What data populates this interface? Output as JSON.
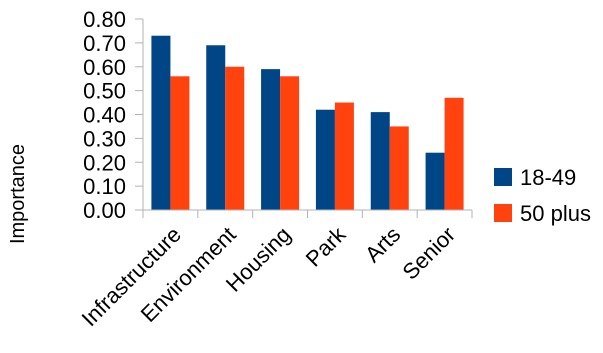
{
  "chart_data": {
    "type": "bar",
    "categories": [
      "Infrastructure",
      "Environment",
      "Housing",
      "Park",
      "Arts",
      "Senior"
    ],
    "series": [
      {
        "name": "18-49",
        "values": [
          0.73,
          0.69,
          0.59,
          0.42,
          0.41,
          0.24
        ],
        "color": "#004586"
      },
      {
        "name": "50 plus",
        "values": [
          0.56,
          0.6,
          0.56,
          0.45,
          0.35,
          0.47
        ],
        "color": "#ff420e"
      }
    ],
    "ylabel": "Importance",
    "ylim": [
      0,
      0.8
    ],
    "yticks": [
      "0.00",
      "0.10",
      "0.20",
      "0.30",
      "0.40",
      "0.50",
      "0.60",
      "0.70",
      "0.80"
    ],
    "grid": false,
    "legend": "right"
  }
}
